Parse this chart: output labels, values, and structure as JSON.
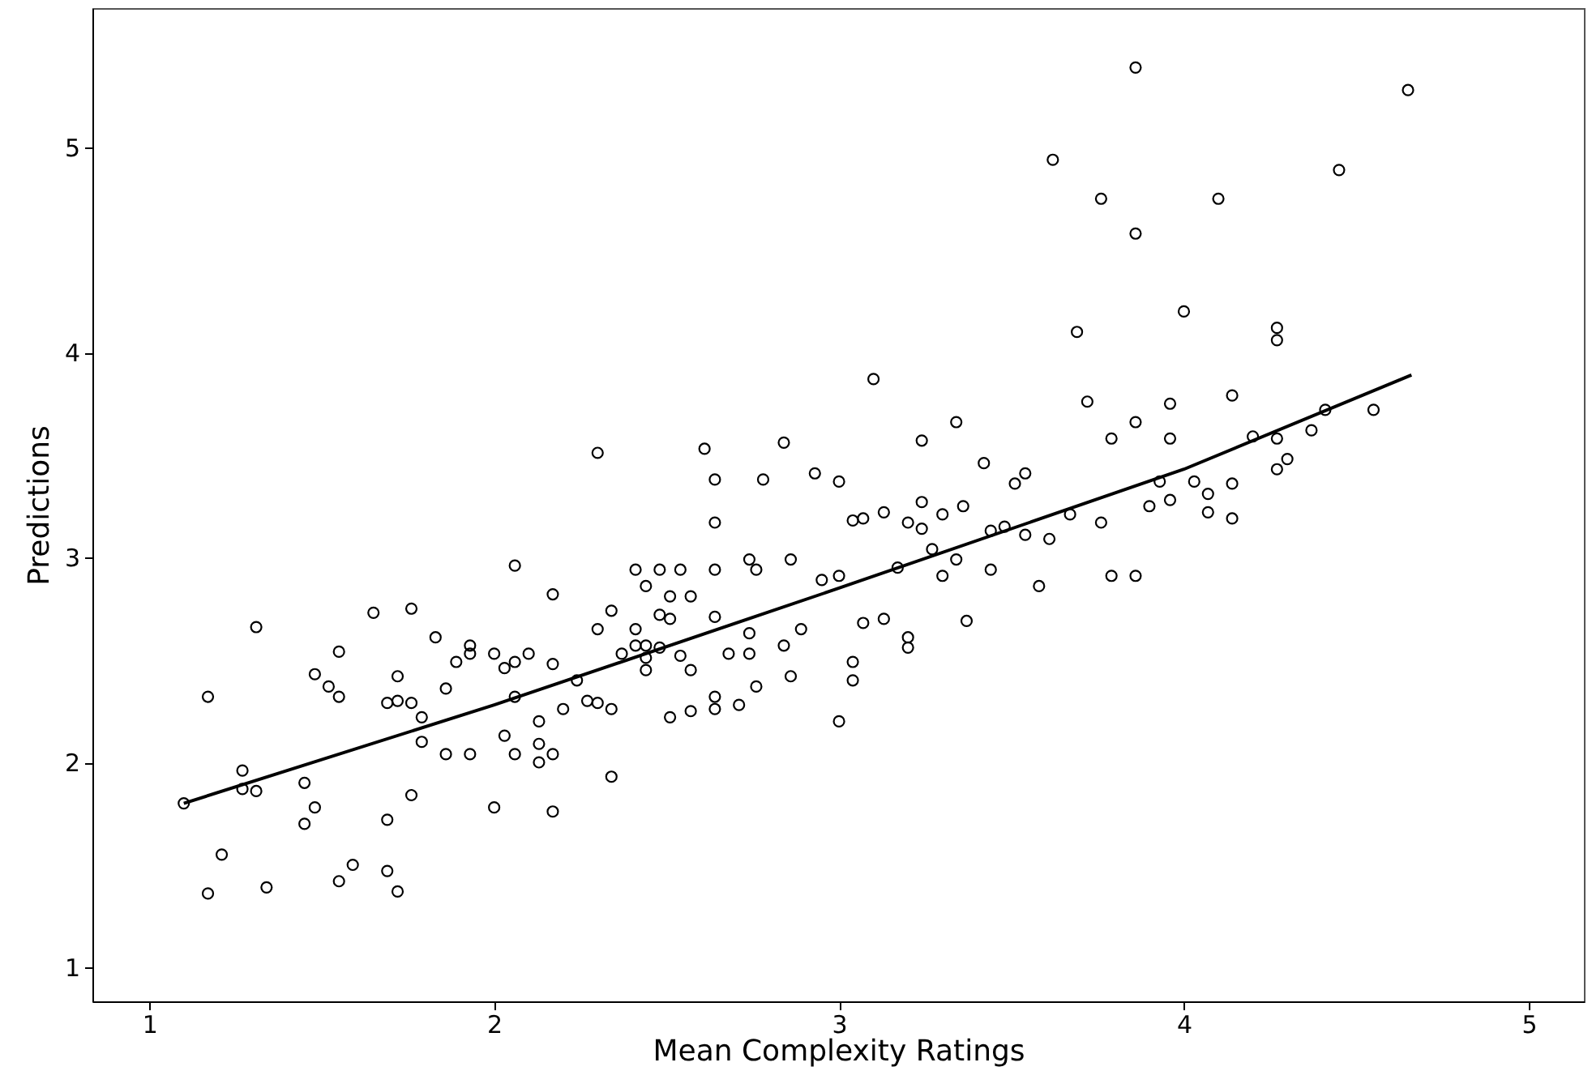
{
  "chart_data": {
    "type": "scatter",
    "xlabel": "Mean Complexity Ratings",
    "ylabel": "Predictions",
    "xlim": [
      0.835,
      5.16
    ],
    "ylim": [
      0.834,
      5.68
    ],
    "xticks": [
      1,
      2,
      3,
      4,
      5
    ],
    "yticks": [
      1,
      2,
      3,
      4,
      5
    ],
    "grid": false,
    "marker": "circle",
    "series": [
      {
        "color": "#000000",
        "x": [
          1.1,
          1.17,
          1.17,
          1.21,
          1.27,
          1.27,
          1.31,
          1.31,
          1.34,
          1.45,
          1.45,
          1.48,
          1.48,
          1.52,
          1.55,
          1.55,
          1.55,
          1.59,
          1.65,
          1.69,
          1.69,
          1.69,
          1.72,
          1.72,
          1.72,
          1.76,
          1.76,
          1.76,
          1.79,
          1.79,
          1.83,
          1.86,
          1.86,
          1.89,
          1.93,
          1.93,
          1.93,
          2.0,
          2.0,
          2.03,
          2.03,
          2.06,
          2.06,
          2.06,
          2.06,
          2.1,
          2.13,
          2.13,
          2.13,
          2.17,
          2.17,
          2.17,
          2.17,
          2.2,
          2.24,
          2.27,
          2.3,
          2.3,
          2.3,
          2.34,
          2.34,
          2.34,
          2.37,
          2.41,
          2.41,
          2.41,
          2.44,
          2.44,
          2.44,
          2.44,
          2.48,
          2.48,
          2.48,
          2.51,
          2.51,
          2.51,
          2.54,
          2.54,
          2.57,
          2.57,
          2.57,
          2.61,
          2.64,
          2.64,
          2.64,
          2.64,
          2.64,
          2.64,
          2.68,
          2.71,
          2.74,
          2.74,
          2.74,
          2.76,
          2.76,
          2.78,
          2.84,
          2.84,
          2.86,
          2.86,
          2.89,
          2.93,
          2.95,
          3.0,
          3.0,
          3.0,
          3.04,
          3.04,
          3.04,
          3.07,
          3.07,
          3.1,
          3.13,
          3.13,
          3.17,
          3.2,
          3.2,
          3.2,
          3.24,
          3.24,
          3.24,
          3.27,
          3.3,
          3.3,
          3.34,
          3.34,
          3.36,
          3.37,
          3.42,
          3.44,
          3.44,
          3.48,
          3.51,
          3.54,
          3.54,
          3.58,
          3.61,
          3.62,
          3.67,
          3.69,
          3.72,
          3.76,
          3.76,
          3.79,
          3.79,
          3.86,
          3.86,
          3.86,
          3.86,
          3.9,
          3.93,
          3.96,
          3.96,
          3.96,
          4.0,
          4.03,
          4.07,
          4.07,
          4.1,
          4.14,
          4.14,
          4.14,
          4.2,
          4.27,
          4.27,
          4.27,
          4.27,
          4.3,
          4.37,
          4.41,
          4.45,
          4.55,
          4.65
        ],
        "values": [
          1.8,
          2.32,
          1.36,
          1.55,
          1.96,
          1.87,
          1.86,
          2.66,
          1.39,
          1.9,
          1.7,
          2.43,
          1.78,
          2.37,
          2.54,
          2.32,
          1.42,
          1.5,
          2.73,
          2.29,
          1.72,
          1.47,
          2.42,
          2.3,
          1.37,
          2.75,
          2.29,
          1.84,
          2.22,
          2.1,
          2.61,
          2.36,
          2.04,
          2.49,
          2.57,
          2.53,
          2.04,
          2.53,
          1.78,
          2.46,
          2.13,
          2.96,
          2.49,
          2.32,
          2.04,
          2.53,
          2.2,
          2.09,
          2.0,
          2.82,
          2.48,
          2.04,
          1.76,
          2.26,
          2.4,
          2.3,
          3.51,
          2.65,
          2.29,
          2.74,
          2.26,
          1.93,
          2.53,
          2.65,
          2.57,
          2.94,
          2.86,
          2.57,
          2.51,
          2.45,
          2.94,
          2.72,
          2.56,
          2.81,
          2.7,
          2.22,
          2.94,
          2.52,
          2.81,
          2.25,
          2.45,
          3.53,
          2.71,
          2.94,
          3.17,
          3.38,
          2.32,
          2.26,
          2.53,
          2.28,
          2.99,
          2.63,
          2.53,
          2.94,
          2.37,
          3.38,
          3.56,
          2.57,
          2.99,
          2.42,
          2.65,
          3.41,
          2.89,
          3.37,
          2.91,
          2.2,
          3.18,
          2.49,
          2.4,
          3.19,
          2.68,
          3.87,
          3.22,
          2.7,
          2.95,
          3.17,
          2.61,
          2.56,
          3.57,
          3.27,
          3.14,
          3.04,
          3.21,
          2.91,
          3.66,
          2.99,
          3.25,
          2.69,
          3.46,
          3.13,
          2.94,
          3.15,
          3.36,
          3.41,
          3.11,
          2.86,
          3.09,
          4.94,
          3.21,
          4.1,
          3.76,
          4.75,
          3.17,
          2.91,
          3.58,
          5.39,
          4.58,
          3.66,
          2.91,
          3.25,
          3.37,
          3.75,
          3.58,
          3.28,
          4.2,
          3.37,
          3.31,
          3.22,
          4.75,
          3.79,
          3.36,
          3.19,
          3.59,
          4.12,
          4.06,
          3.58,
          3.43,
          3.48,
          3.62,
          3.72,
          4.89,
          3.72,
          5.28
        ]
      },
      {
        "type": "line",
        "marker": "none",
        "line_style": "solid",
        "color": "#000000",
        "x": [
          1.1,
          2.0,
          3.0,
          4.0,
          4.66
        ],
        "values": [
          1.8,
          2.28,
          2.85,
          3.43,
          3.89
        ]
      }
    ]
  }
}
